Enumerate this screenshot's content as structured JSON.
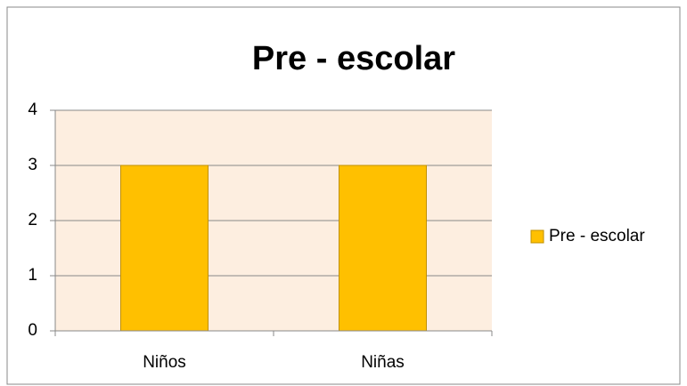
{
  "chart_data": {
    "type": "bar",
    "title": "Pre - escolar",
    "categories": [
      "Niños",
      "Niñas"
    ],
    "series": [
      {
        "name": "Pre - escolar",
        "color": "#ffc000",
        "values": [
          3,
          3
        ]
      }
    ],
    "ylim": [
      0,
      4
    ],
    "yticks": [
      0,
      1,
      2,
      3,
      4
    ],
    "grid": true,
    "legend": "right"
  }
}
